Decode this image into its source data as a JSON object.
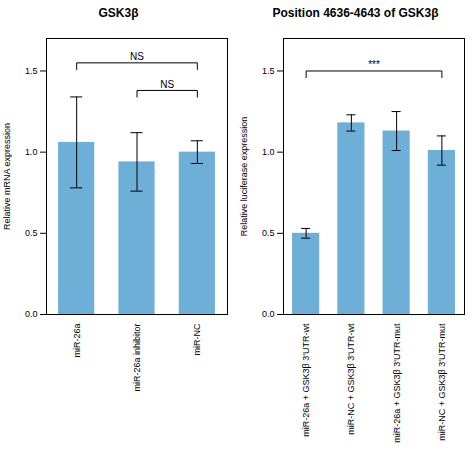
{
  "chart_data": [
    {
      "type": "bar",
      "title": "GSK3β",
      "ylabel": "Relative mRNA expression",
      "categories": [
        "miR-26a",
        "miR-26a inhibitor",
        "miR-NC"
      ],
      "values": [
        1.06,
        0.94,
        1.0
      ],
      "errors": [
        0.28,
        0.18,
        0.07
      ],
      "color": "#6dafd7",
      "ylim": [
        0,
        1.7
      ],
      "yticks": [
        {
          "value": 0,
          "label": "0.0"
        },
        {
          "value": 0.5,
          "label": "0.5"
        },
        {
          "value": 1,
          "label": "1.0"
        },
        {
          "value": 1.5,
          "label": "1.5"
        }
      ],
      "annotations": [
        {
          "text": "NS",
          "x1": "miR-26a",
          "x2": "miR-NC",
          "y": 1.55
        },
        {
          "text": "NS",
          "x1": "miR-26a inhibitor",
          "x2": "miR-NC",
          "y": 1.38
        }
      ]
    },
    {
      "type": "bar",
      "title": "Position 4636-4643 of GSK3β",
      "ylabel": "Relative luciferase expression",
      "categories": [
        "miR-26a + GSK3β 3'UTR-wt",
        "miR-NC + GSK3β 3'UTR-wt",
        "miR-26a + GSK3β 3'UTR-mut",
        "miR-NC + GSK3β 3'UTR-mut"
      ],
      "values": [
        0.5,
        1.18,
        1.13,
        1.01
      ],
      "errors": [
        0.03,
        0.05,
        0.12,
        0.09
      ],
      "color": "#6dafd7",
      "ylim": [
        0,
        1.7
      ],
      "yticks": [
        {
          "value": 0,
          "label": "0.0"
        },
        {
          "value": 0.5,
          "label": "0.5"
        },
        {
          "value": 1,
          "label": "1.0"
        },
        {
          "value": 1.5,
          "label": "1.5"
        }
      ],
      "annotations": [
        {
          "text": "***",
          "x1": "miR-26a + GSK3β 3'UTR-wt",
          "x2": "miR-NC + GSK3β 3'UTR-mut",
          "y": 1.5
        }
      ]
    }
  ]
}
